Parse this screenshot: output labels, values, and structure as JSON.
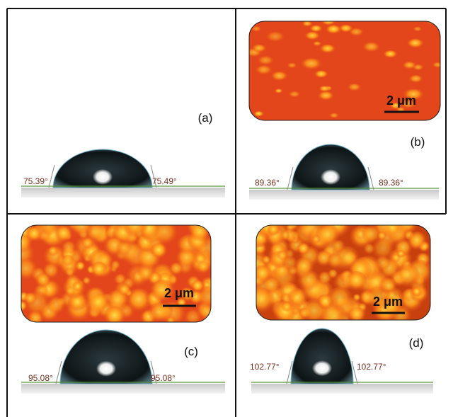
{
  "panels": [
    {
      "label": "(a)",
      "left_angle": "75.39°",
      "right_angle": "75.49°"
    },
    {
      "label": "(b)",
      "left_angle": "89.36°",
      "right_angle": "89.36°",
      "scale_bar": "2 μm"
    },
    {
      "label": "(c)",
      "left_angle": "95.08°",
      "right_angle": "95.08°",
      "scale_bar": "2 μm"
    },
    {
      "label": "(d)",
      "left_angle": "102.77°",
      "right_angle": "102.77°",
      "scale_bar": "2 μm"
    }
  ]
}
